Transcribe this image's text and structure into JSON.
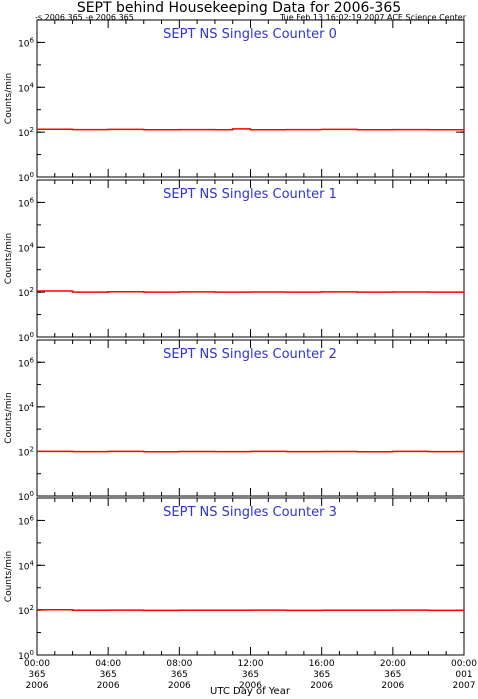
{
  "header": {
    "title": "SEPT behind Housekeeping Data for 2006-365",
    "range_text": "-s 2006 365  -e 2006 365",
    "timestamp_text": "Tue Feb 13 16:02:19 2007 ACE Science Center"
  },
  "colors": {
    "trace": "#ff0000",
    "panel_title": "#3333cc",
    "axes": "#000000"
  },
  "chart_data": [
    {
      "type": "line",
      "title": "SEPT NS Singles Counter 0",
      "ylabel": "Counts/min",
      "yscale": "log",
      "ylim": [
        1,
        10000000
      ],
      "y_ticks": [
        "10^0",
        "10^2",
        "10^4",
        "10^6"
      ],
      "x_range_hours": [
        0,
        24
      ],
      "series": [
        {
          "x": [
            0,
            2,
            4,
            6,
            8,
            10,
            11,
            12,
            14,
            16,
            18,
            20,
            22,
            24
          ],
          "values": [
            135,
            130,
            132,
            128,
            130,
            128,
            140,
            128,
            130,
            132,
            128,
            130,
            128,
            115
          ]
        }
      ]
    },
    {
      "type": "line",
      "title": "SEPT NS Singles Counter 1",
      "ylabel": "Counts/min",
      "yscale": "log",
      "ylim": [
        1,
        10000000
      ],
      "y_ticks": [
        "10^0",
        "10^2",
        "10^4",
        "10^6"
      ],
      "x_range_hours": [
        0,
        24
      ],
      "series": [
        {
          "x": [
            0,
            2,
            4,
            6,
            8,
            10,
            12,
            14,
            16,
            18,
            20,
            22,
            24
          ],
          "values": [
            112,
            100,
            105,
            100,
            102,
            100,
            101,
            100,
            102,
            100,
            101,
            100,
            108
          ]
        }
      ]
    },
    {
      "type": "line",
      "title": "SEPT NS Singles Counter 2",
      "ylabel": "Counts/min",
      "yscale": "log",
      "ylim": [
        1,
        10000000
      ],
      "y_ticks": [
        "10^0",
        "10^2",
        "10^4",
        "10^6"
      ],
      "x_range_hours": [
        0,
        24
      ],
      "series": [
        {
          "x": [
            0,
            2,
            4,
            6,
            8,
            10,
            12,
            14,
            16,
            18,
            20,
            22,
            24
          ],
          "values": [
            100,
            98,
            100,
            97,
            99,
            98,
            100,
            98,
            99,
            97,
            100,
            98,
            99
          ]
        }
      ]
    },
    {
      "type": "line",
      "title": "SEPT NS Singles Counter 3",
      "ylabel": "Counts/min",
      "yscale": "log",
      "ylim": [
        1,
        10000000
      ],
      "y_ticks": [
        "10^0",
        "10^2",
        "10^4",
        "10^6"
      ],
      "x_range_hours": [
        0,
        24
      ],
      "series": [
        {
          "x": [
            0,
            2,
            4,
            6,
            8,
            10,
            12,
            14,
            16,
            18,
            20,
            22,
            24
          ],
          "values": [
            105,
            98,
            100,
            97,
            99,
            98,
            100,
            97,
            99,
            98,
            100,
            97,
            96
          ]
        }
      ]
    }
  ],
  "x_axis": {
    "label": "UTC Day of Year",
    "ticks": [
      {
        "hour": 0,
        "time": "00:00",
        "doy": "365",
        "year": "2006"
      },
      {
        "hour": 4,
        "time": "04:00",
        "doy": "365",
        "year": "2006"
      },
      {
        "hour": 8,
        "time": "08:00",
        "doy": "365",
        "year": "2006"
      },
      {
        "hour": 12,
        "time": "12:00",
        "doy": "365",
        "year": "2006"
      },
      {
        "hour": 16,
        "time": "16:00",
        "doy": "365",
        "year": "2006"
      },
      {
        "hour": 20,
        "time": "20:00",
        "doy": "365",
        "year": "2006"
      },
      {
        "hour": 24,
        "time": "00:00",
        "doy": "001",
        "year": "2007"
      }
    ]
  }
}
